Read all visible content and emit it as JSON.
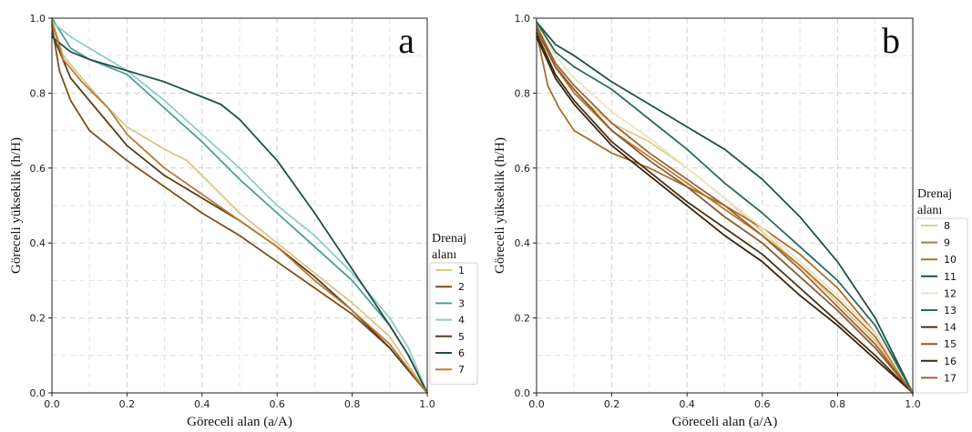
{
  "chart_data": [
    {
      "type": "line",
      "panel_label": "a",
      "xlabel": "Göreceli alan (a/A)",
      "ylabel": "Göreceli yükseklik (h/H)",
      "xlim": [
        0,
        1
      ],
      "ylim": [
        0,
        1
      ],
      "xticks": [
        "0.0",
        "0.2",
        "0.4",
        "0.6",
        "0.8",
        "1.0"
      ],
      "yticks": [
        "0.0",
        "0.2",
        "0.4",
        "0.6",
        "0.8",
        "1.0"
      ],
      "grid": true,
      "legend": {
        "title_line1": "Drenaj",
        "title_line2": "alanı",
        "placement": "right"
      },
      "series": [
        {
          "name": "1",
          "color": "#dcc48a",
          "x": [
            0,
            0.03,
            0.08,
            0.15,
            0.2,
            0.3,
            0.36,
            0.42,
            0.5,
            0.6,
            0.7,
            0.8,
            0.9,
            1.0
          ],
          "y": [
            1.0,
            0.9,
            0.84,
            0.76,
            0.71,
            0.65,
            0.62,
            0.56,
            0.48,
            0.4,
            0.32,
            0.24,
            0.15,
            0.0
          ]
        },
        {
          "name": "2",
          "color": "#7a4f1f",
          "x": [
            0,
            0.02,
            0.05,
            0.1,
            0.2,
            0.3,
            0.4,
            0.5,
            0.6,
            0.7,
            0.8,
            0.9,
            1.0
          ],
          "y": [
            0.98,
            0.86,
            0.78,
            0.7,
            0.62,
            0.55,
            0.48,
            0.42,
            0.35,
            0.28,
            0.21,
            0.12,
            0.0
          ]
        },
        {
          "name": "3",
          "color": "#4d9e96",
          "x": [
            0,
            0.05,
            0.1,
            0.2,
            0.3,
            0.4,
            0.5,
            0.6,
            0.7,
            0.8,
            0.9,
            0.95,
            1.0
          ],
          "y": [
            1.0,
            0.92,
            0.89,
            0.85,
            0.76,
            0.67,
            0.57,
            0.48,
            0.39,
            0.3,
            0.18,
            0.1,
            0.0
          ]
        },
        {
          "name": "4",
          "color": "#8fcdc6",
          "x": [
            0,
            0.05,
            0.1,
            0.2,
            0.3,
            0.4,
            0.5,
            0.6,
            0.7,
            0.8,
            0.9,
            0.95,
            1.0
          ],
          "y": [
            0.99,
            0.95,
            0.92,
            0.86,
            0.78,
            0.69,
            0.6,
            0.5,
            0.42,
            0.32,
            0.2,
            0.12,
            0.0
          ]
        },
        {
          "name": "5",
          "color": "#5a3a18",
          "x": [
            0,
            0.05,
            0.1,
            0.2,
            0.3,
            0.4,
            0.5,
            0.6,
            0.7,
            0.8,
            0.9,
            1.0
          ],
          "y": [
            0.96,
            0.84,
            0.78,
            0.66,
            0.58,
            0.52,
            0.46,
            0.39,
            0.31,
            0.22,
            0.12,
            0.0
          ]
        },
        {
          "name": "6",
          "color": "#1f4f45",
          "x": [
            0,
            0.05,
            0.1,
            0.2,
            0.3,
            0.4,
            0.45,
            0.5,
            0.6,
            0.7,
            0.8,
            0.9,
            0.95,
            1.0
          ],
          "y": [
            0.95,
            0.91,
            0.89,
            0.86,
            0.83,
            0.79,
            0.77,
            0.73,
            0.62,
            0.48,
            0.33,
            0.18,
            0.1,
            0.0
          ]
        },
        {
          "name": "7",
          "color": "#b87a34",
          "x": [
            0,
            0.03,
            0.08,
            0.15,
            0.2,
            0.3,
            0.4,
            0.5,
            0.6,
            0.7,
            0.8,
            0.9,
            1.0
          ],
          "y": [
            0.99,
            0.89,
            0.83,
            0.76,
            0.69,
            0.6,
            0.53,
            0.46,
            0.39,
            0.3,
            0.22,
            0.13,
            0.0
          ]
        }
      ]
    },
    {
      "type": "line",
      "panel_label": "b",
      "xlabel": "Göreceli alan (a/A)",
      "ylabel": "Göreceli yükseklik (h/H)",
      "xlim": [
        0,
        1
      ],
      "ylim": [
        0,
        1
      ],
      "xticks": [
        "0.0",
        "0.2",
        "0.4",
        "0.6",
        "0.8",
        "1.0"
      ],
      "yticks": [
        "0.0",
        "0.2",
        "0.4",
        "0.6",
        "0.8",
        "1.0"
      ],
      "grid": true,
      "legend": {
        "title_line1": "Drenaj",
        "title_line2": "alanı",
        "placement": "right"
      },
      "series": [
        {
          "name": "8",
          "color": "#e4cc93",
          "x": [
            0,
            0.05,
            0.1,
            0.2,
            0.3,
            0.4,
            0.5,
            0.6,
            0.7,
            0.8,
            0.9,
            1.0
          ],
          "y": [
            0.98,
            0.88,
            0.8,
            0.72,
            0.67,
            0.6,
            0.52,
            0.43,
            0.34,
            0.24,
            0.14,
            0.0
          ]
        },
        {
          "name": "9",
          "color": "#b8782d",
          "x": [
            0,
            0.05,
            0.1,
            0.2,
            0.3,
            0.4,
            0.5,
            0.6,
            0.7,
            0.8,
            0.9,
            1.0
          ],
          "y": [
            0.97,
            0.87,
            0.8,
            0.7,
            0.63,
            0.56,
            0.49,
            0.42,
            0.34,
            0.25,
            0.15,
            0.0
          ]
        },
        {
          "name": "10",
          "color": "#a86e2e",
          "x": [
            0,
            0.03,
            0.06,
            0.1,
            0.2,
            0.3,
            0.4,
            0.5,
            0.6,
            0.7,
            0.8,
            0.9,
            1.0
          ],
          "y": [
            0.96,
            0.82,
            0.76,
            0.7,
            0.64,
            0.6,
            0.55,
            0.5,
            0.44,
            0.37,
            0.28,
            0.16,
            0.0
          ]
        },
        {
          "name": "11",
          "color": "#1d5247",
          "x": [
            0,
            0.05,
            0.1,
            0.2,
            0.3,
            0.4,
            0.5,
            0.6,
            0.7,
            0.8,
            0.9,
            0.95,
            1.0
          ],
          "y": [
            0.99,
            0.93,
            0.9,
            0.83,
            0.77,
            0.71,
            0.65,
            0.57,
            0.47,
            0.35,
            0.2,
            0.1,
            0.0
          ]
        },
        {
          "name": "12",
          "color": "#f0e2c0",
          "x": [
            0,
            0.05,
            0.1,
            0.2,
            0.3,
            0.4,
            0.5,
            0.6,
            0.7,
            0.8,
            0.9,
            1.0
          ],
          "y": [
            0.99,
            0.9,
            0.84,
            0.75,
            0.68,
            0.6,
            0.52,
            0.44,
            0.35,
            0.26,
            0.16,
            0.0
          ]
        },
        {
          "name": "13",
          "color": "#2a6a5c",
          "x": [
            0,
            0.05,
            0.1,
            0.2,
            0.3,
            0.4,
            0.5,
            0.6,
            0.7,
            0.8,
            0.9,
            1.0
          ],
          "y": [
            0.99,
            0.91,
            0.87,
            0.81,
            0.73,
            0.65,
            0.56,
            0.48,
            0.39,
            0.3,
            0.18,
            0.0
          ]
        },
        {
          "name": "14",
          "color": "#4b2f14",
          "x": [
            0,
            0.05,
            0.1,
            0.2,
            0.3,
            0.4,
            0.5,
            0.6,
            0.7,
            0.8,
            0.9,
            1.0
          ],
          "y": [
            0.96,
            0.85,
            0.78,
            0.67,
            0.59,
            0.51,
            0.44,
            0.37,
            0.28,
            0.19,
            0.1,
            0.0
          ]
        },
        {
          "name": "15",
          "color": "#8a5a2e",
          "x": [
            0,
            0.05,
            0.1,
            0.2,
            0.3,
            0.4,
            0.5,
            0.6,
            0.7,
            0.8,
            0.9,
            1.0
          ],
          "y": [
            0.97,
            0.87,
            0.81,
            0.7,
            0.62,
            0.55,
            0.47,
            0.4,
            0.31,
            0.22,
            0.12,
            0.0
          ]
        },
        {
          "name": "16",
          "color": "#3a2410",
          "x": [
            0,
            0.05,
            0.1,
            0.2,
            0.3,
            0.4,
            0.5,
            0.6,
            0.7,
            0.8,
            0.9,
            1.0
          ],
          "y": [
            0.95,
            0.84,
            0.77,
            0.66,
            0.58,
            0.5,
            0.42,
            0.35,
            0.26,
            0.18,
            0.09,
            0.0
          ]
        },
        {
          "name": "17",
          "color": "#9c6430",
          "x": [
            0,
            0.05,
            0.1,
            0.2,
            0.3,
            0.4,
            0.5,
            0.6,
            0.7,
            0.8,
            0.9,
            1.0
          ],
          "y": [
            0.98,
            0.88,
            0.82,
            0.72,
            0.64,
            0.57,
            0.5,
            0.42,
            0.33,
            0.23,
            0.13,
            0.0
          ]
        }
      ]
    }
  ]
}
